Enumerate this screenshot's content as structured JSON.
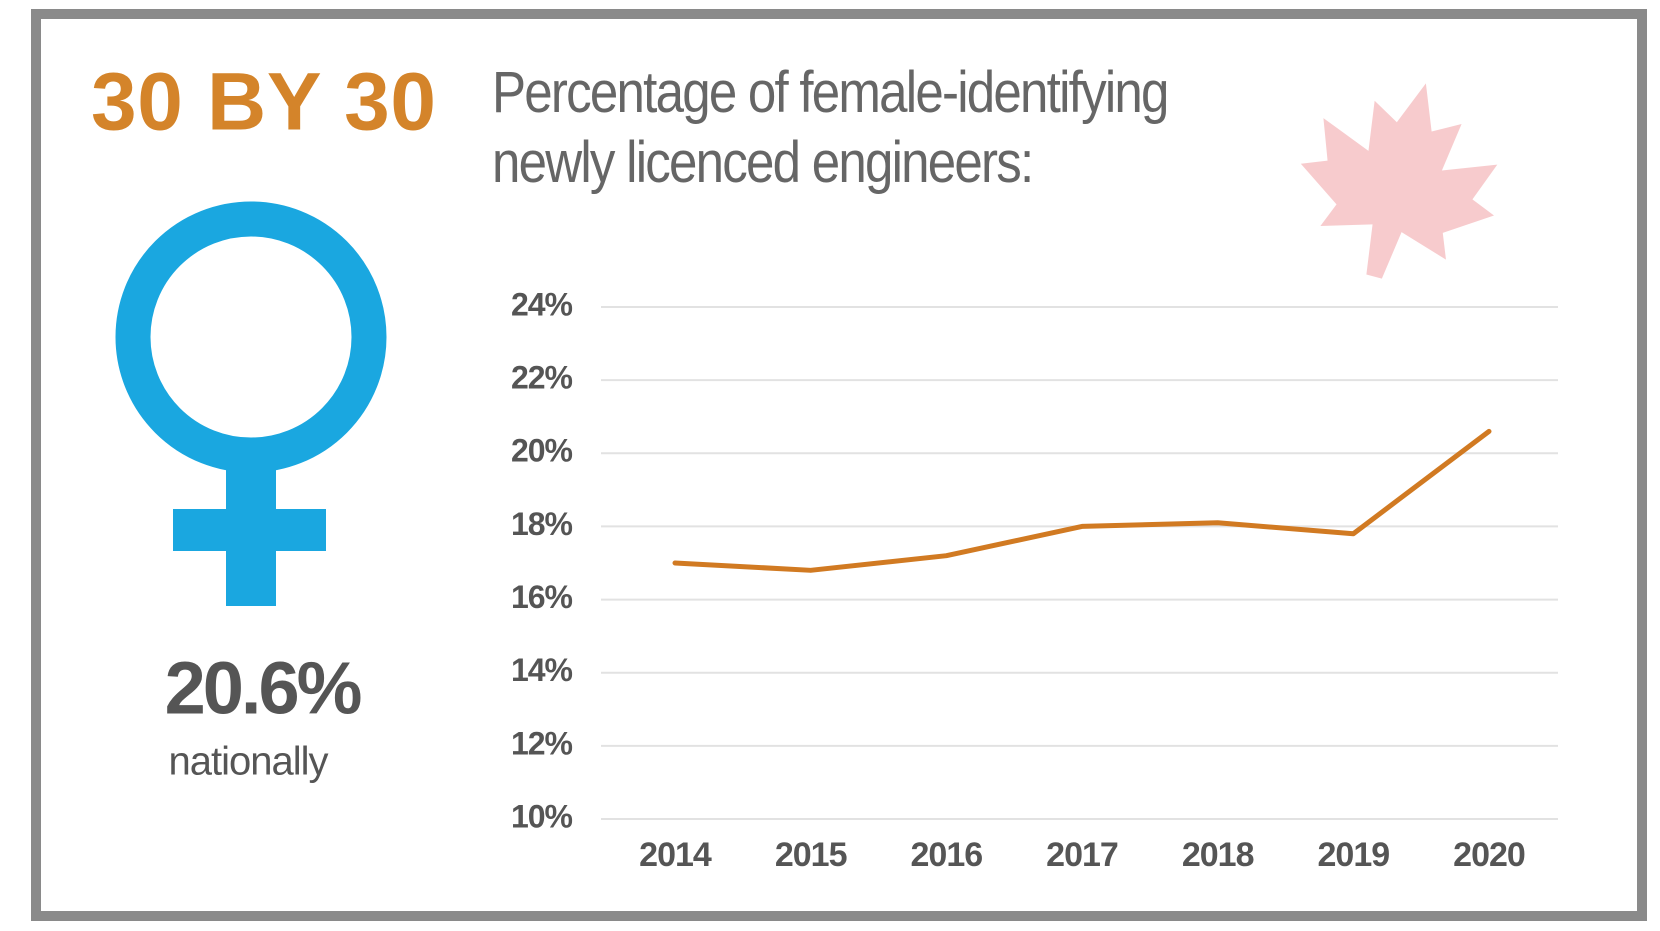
{
  "chart_data": {
    "type": "line",
    "title": "Percentage of female-identifying\nnewly licenced engineers:",
    "annotations": [
      "30 BY 30",
      "20.6%",
      "nationally"
    ],
    "categories": [
      "2014",
      "2015",
      "2016",
      "2017",
      "2018",
      "2019",
      "2020"
    ],
    "values": [
      17.0,
      16.8,
      17.2,
      18.0,
      18.1,
      17.8,
      20.6
    ],
    "color": "#d17a22",
    "ylim": [
      10,
      24
    ],
    "yticks": [
      {
        "value": 10,
        "label": "10%"
      },
      {
        "value": 12,
        "label": "12%"
      },
      {
        "value": 14,
        "label": "14%"
      },
      {
        "value": 16,
        "label": "16%"
      },
      {
        "value": 18,
        "label": "18%"
      },
      {
        "value": 20,
        "label": "20%"
      },
      {
        "value": 22,
        "label": "22%"
      },
      {
        "value": 24,
        "label": "24%"
      }
    ],
    "grid": true
  }
}
